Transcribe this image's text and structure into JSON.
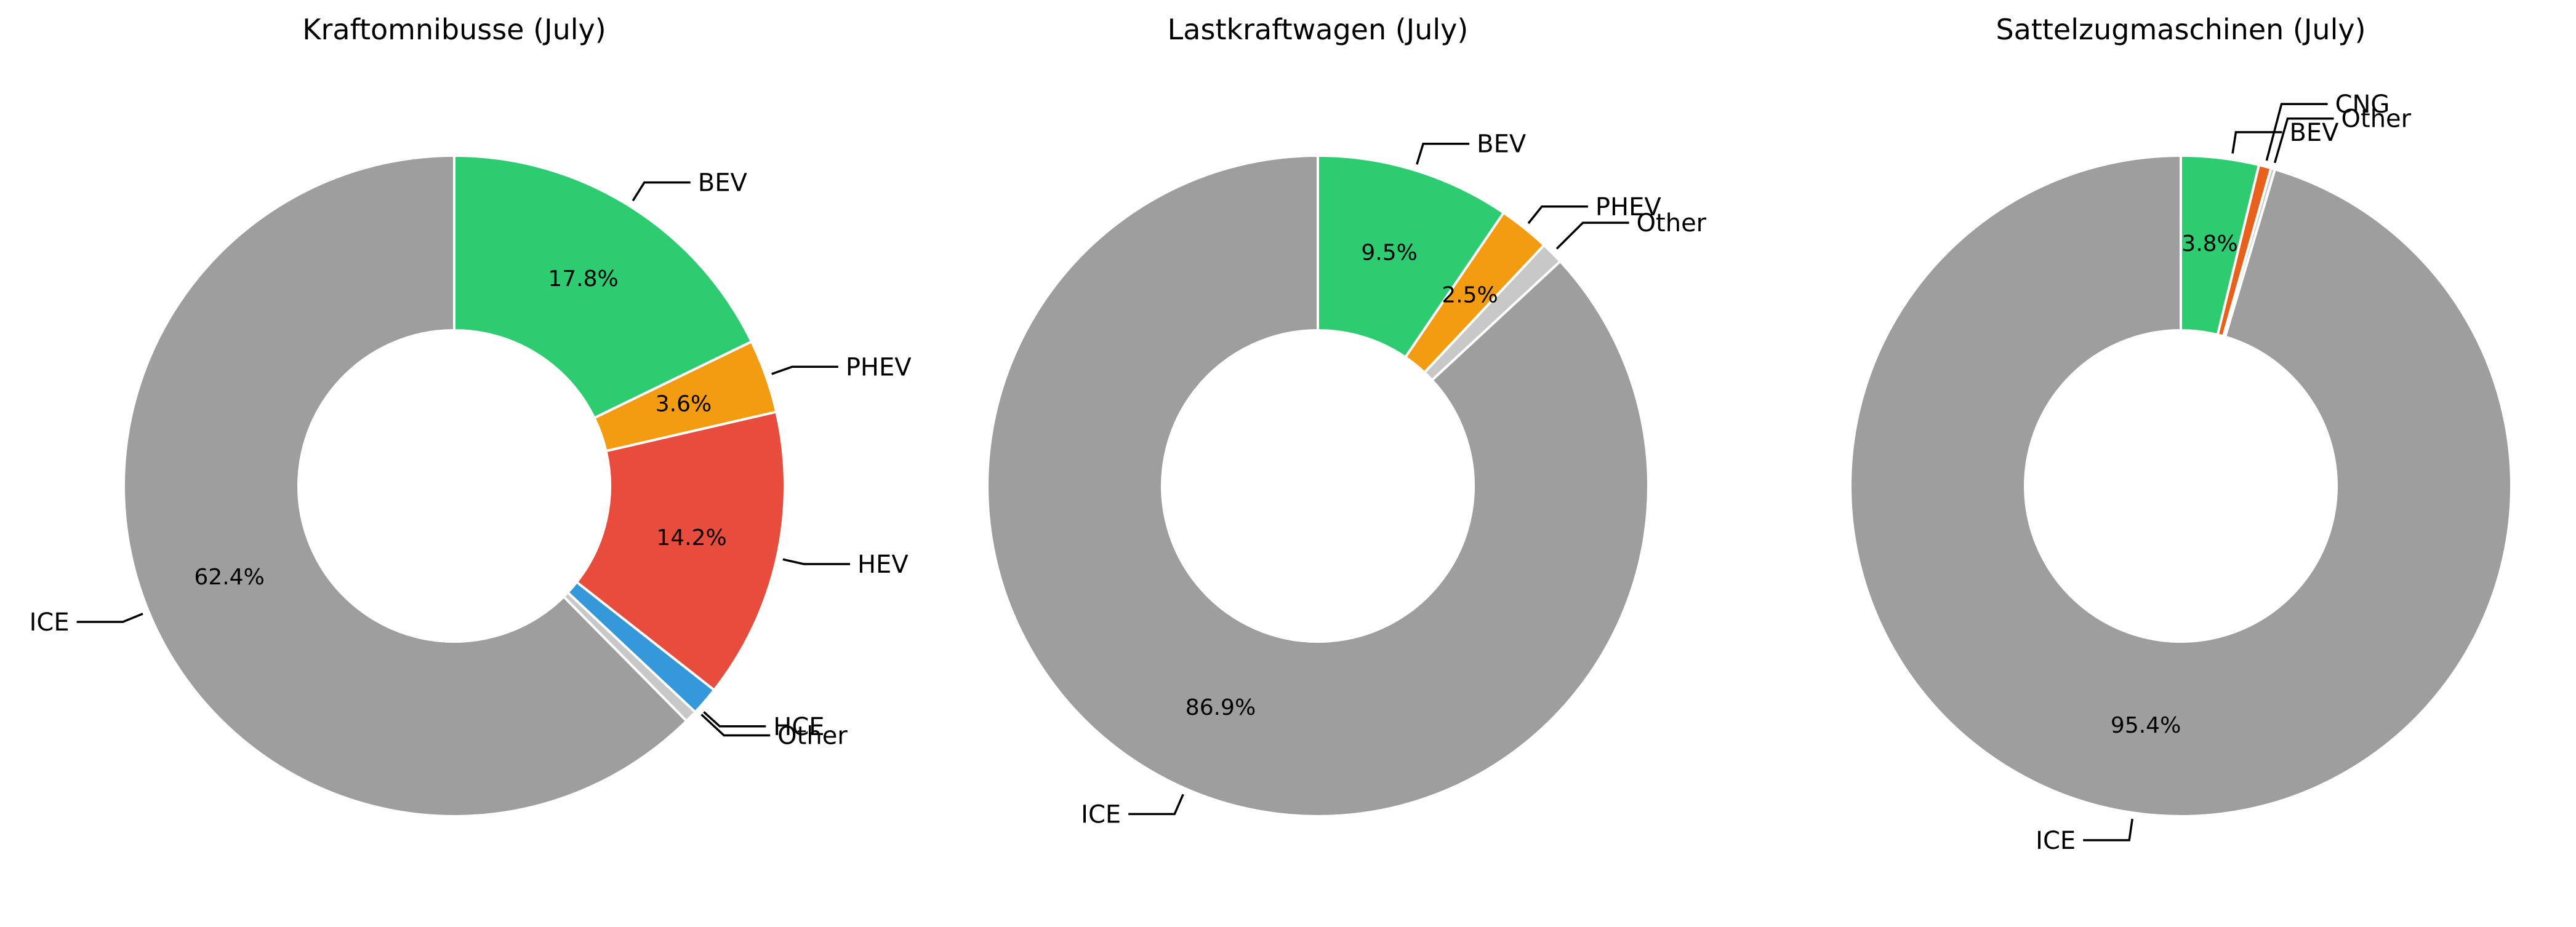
{
  "colors": {
    "BEV": "#2ecc71",
    "PHEV": "#f39c12",
    "HEV": "#e74c3c",
    "HCE": "#3498db",
    "CNG": "#e8601c",
    "Other": "#c8c8c8",
    "ICE": "#9e9e9e"
  },
  "chart_data": [
    {
      "type": "pie",
      "style": "donut",
      "title": "Kraftomnibusse (July)",
      "slices": [
        {
          "label": "BEV",
          "value": 17.8,
          "pct_label": "17.8%"
        },
        {
          "label": "PHEV",
          "value": 3.6,
          "pct_label": "3.6%"
        },
        {
          "label": "HEV",
          "value": 14.2,
          "pct_label": "14.2%"
        },
        {
          "label": "HCE",
          "value": 1.4,
          "pct_label": ""
        },
        {
          "label": "Other",
          "value": 0.6,
          "pct_label": ""
        },
        {
          "label": "ICE",
          "value": 62.4,
          "pct_label": "62.4%"
        }
      ]
    },
    {
      "type": "pie",
      "style": "donut",
      "title": "Lastkraftwagen (July)",
      "slices": [
        {
          "label": "BEV",
          "value": 9.5,
          "pct_label": "9.5%"
        },
        {
          "label": "PHEV",
          "value": 2.5,
          "pct_label": "2.5%"
        },
        {
          "label": "Other",
          "value": 1.1,
          "pct_label": ""
        },
        {
          "label": "ICE",
          "value": 86.9,
          "pct_label": "86.9%"
        }
      ]
    },
    {
      "type": "pie",
      "style": "donut",
      "title": "Sattelzugmaschinen (July)",
      "slices": [
        {
          "label": "BEV",
          "value": 3.8,
          "pct_label": "3.8%"
        },
        {
          "label": "CNG",
          "value": 0.6,
          "pct_label": ""
        },
        {
          "label": "Other",
          "value": 0.2,
          "pct_label": ""
        },
        {
          "label": "ICE",
          "value": 95.4,
          "pct_label": "95.4%"
        }
      ]
    }
  ]
}
